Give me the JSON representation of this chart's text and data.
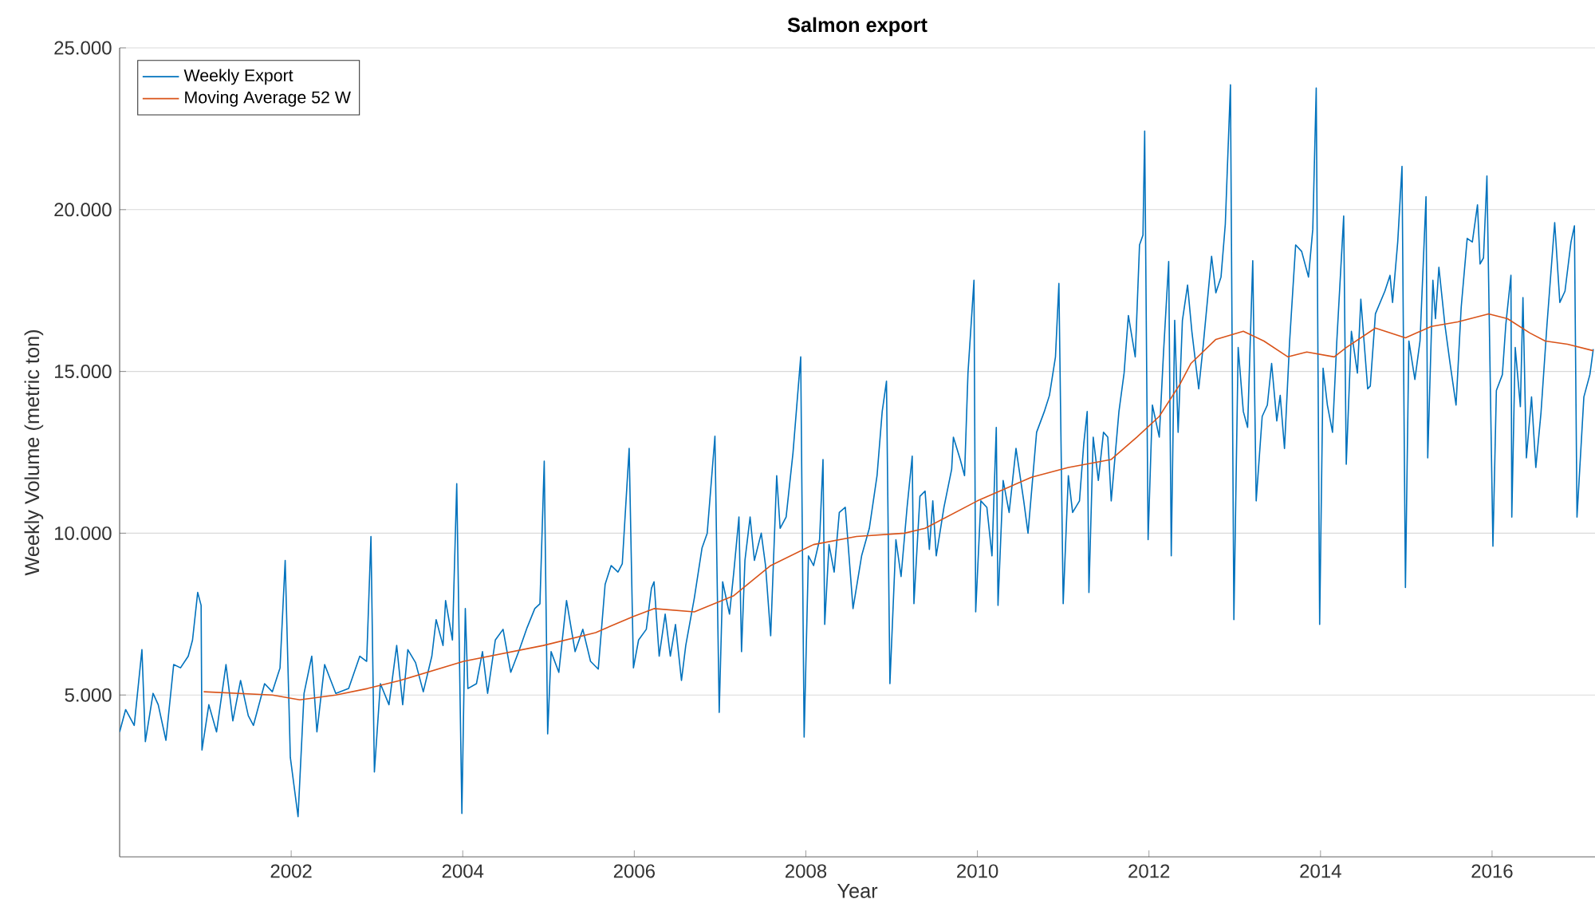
{
  "chart_data": {
    "type": "line",
    "title": "Salmon export",
    "xlabel": "Year",
    "ylabel": "Weekly Volume (metric ton)",
    "xlim": [
      2000,
      2017.2
    ],
    "ylim": [
      0,
      25000
    ],
    "xticks": [
      2002,
      2004,
      2006,
      2008,
      2010,
      2012,
      2014,
      2016
    ],
    "yticks": [
      {
        "value": 5000,
        "label": "5.000"
      },
      {
        "value": 10000,
        "label": "10.000"
      },
      {
        "value": 15000,
        "label": "15.000"
      },
      {
        "value": 20000,
        "label": "20.000"
      },
      {
        "value": 25000,
        "label": "25.000"
      }
    ],
    "grid": "y",
    "legend": "top left",
    "series": [
      {
        "name": "Weekly Export",
        "color": "#0072bd",
        "x": [
          2000.0,
          2000.07,
          2000.17,
          2000.26,
          2000.3,
          2000.39,
          2000.45,
          2000.54,
          2000.63,
          2000.71,
          2000.8,
          2000.85,
          2000.91,
          2000.95,
          2000.96,
          2001.04,
          2001.13,
          2001.24,
          2001.32,
          2001.41,
          2001.5,
          2001.56,
          2001.69,
          2001.78,
          2001.87,
          2001.93,
          2001.99,
          2002.08,
          2002.15,
          2002.24,
          2002.3,
          2002.39,
          2002.52,
          2002.67,
          2002.8,
          2002.88,
          2002.93,
          2002.97,
          2003.04,
          2003.14,
          2003.23,
          2003.3,
          2003.36,
          2003.45,
          2003.54,
          2003.64,
          2003.69,
          2003.77,
          2003.8,
          2003.88,
          2003.93,
          2003.99,
          2004.03,
          2004.06,
          2004.16,
          2004.23,
          2004.29,
          2004.38,
          2004.47,
          2004.56,
          2004.66,
          2004.75,
          2004.84,
          2004.9,
          2004.95,
          2004.99,
          2005.03,
          2005.12,
          2005.21,
          2005.31,
          2005.4,
          2005.49,
          2005.58,
          2005.66,
          2005.73,
          2005.81,
          2005.86,
          2005.94,
          2005.99,
          2006.05,
          2006.14,
          2006.2,
          2006.23,
          2006.29,
          2006.36,
          2006.42,
          2006.48,
          2006.55,
          2006.6,
          2006.7,
          2006.79,
          2006.85,
          2006.94,
          2006.99,
          2007.03,
          2007.11,
          2007.16,
          2007.22,
          2007.25,
          2007.29,
          2007.35,
          2007.4,
          2007.48,
          2007.53,
          2007.59,
          2007.66,
          2007.7,
          2007.77,
          2007.85,
          2007.94,
          2007.98,
          2008.03,
          2008.09,
          2008.16,
          2008.2,
          2008.22,
          2008.27,
          2008.33,
          2008.39,
          2008.46,
          2008.55,
          2008.65,
          2008.74,
          2008.83,
          2008.89,
          2008.94,
          2008.98,
          2009.05,
          2009.11,
          2009.18,
          2009.24,
          2009.26,
          2009.33,
          2009.39,
          2009.44,
          2009.48,
          2009.52,
          2009.61,
          2009.7,
          2009.72,
          2009.8,
          2009.85,
          2009.89,
          2009.96,
          2009.98,
          2010.04,
          2010.11,
          2010.17,
          2010.22,
          2010.24,
          2010.3,
          2010.37,
          2010.45,
          2010.54,
          2010.59,
          2010.69,
          2010.78,
          2010.84,
          2010.91,
          2010.95,
          2011.0,
          2011.06,
          2011.11,
          2011.19,
          2011.24,
          2011.28,
          2011.3,
          2011.35,
          2011.41,
          2011.47,
          2011.52,
          2011.56,
          2011.65,
          2011.71,
          2011.76,
          2011.84,
          2011.89,
          2011.93,
          2011.95,
          2011.99,
          2012.04,
          2012.12,
          2012.17,
          2012.23,
          2012.26,
          2012.3,
          2012.34,
          2012.39,
          2012.45,
          2012.5,
          2012.58,
          2012.63,
          2012.73,
          2012.78,
          2012.84,
          2012.89,
          2012.95,
          2012.99,
          2013.04,
          2013.1,
          2013.15,
          2013.21,
          2013.25,
          2013.32,
          2013.38,
          2013.43,
          2013.49,
          2013.53,
          2013.58,
          2013.64,
          2013.71,
          2013.78,
          2013.86,
          2013.91,
          2013.95,
          2013.99,
          2014.03,
          2014.08,
          2014.14,
          2014.19,
          2014.27,
          2014.3,
          2014.36,
          2014.43,
          2014.47,
          2014.55,
          2014.58,
          2014.64,
          2014.75,
          2014.81,
          2014.84,
          2014.9,
          2014.95,
          2014.99,
          2015.03,
          2015.1,
          2015.16,
          2015.23,
          2015.25,
          2015.31,
          2015.34,
          2015.38,
          2015.45,
          2015.51,
          2015.58,
          2015.64,
          2015.71,
          2015.77,
          2015.83,
          2015.86,
          2015.9,
          2015.94,
          2016.01,
          2016.05,
          2016.12,
          2016.16,
          2016.22,
          2016.23,
          2016.27,
          2016.33,
          2016.36,
          2016.4,
          2016.46,
          2016.51,
          2016.57,
          2016.64,
          2016.73,
          2016.79,
          2016.85,
          2016.92,
          2016.96,
          2016.99,
          2017.07,
          2017.14,
          2017.18
        ],
        "values": [
          3860,
          4550,
          4060,
          6400,
          3560,
          5050,
          4700,
          3600,
          5940,
          5840,
          6200,
          6700,
          8170,
          7770,
          3300,
          4700,
          3860,
          5940,
          4200,
          5450,
          4360,
          4060,
          5350,
          5100,
          5840,
          9160,
          3070,
          1240,
          5050,
          6200,
          3860,
          5940,
          5050,
          5200,
          6200,
          6040,
          9900,
          2620,
          5350,
          4700,
          6530,
          4700,
          6400,
          6000,
          5100,
          6200,
          7330,
          6530,
          7920,
          6700,
          11530,
          1340,
          7670,
          5200,
          5350,
          6340,
          5050,
          6700,
          7030,
          5700,
          6400,
          7080,
          7670,
          7820,
          12230,
          3800,
          6340,
          5700,
          7920,
          6340,
          7030,
          6040,
          5800,
          8420,
          9000,
          8800,
          9060,
          12620,
          5840,
          6700,
          7030,
          8300,
          8500,
          6200,
          7500,
          6200,
          7180,
          5450,
          6530,
          8000,
          9550,
          10000,
          13000,
          4460,
          8500,
          7500,
          8800,
          10500,
          6340,
          9160,
          10500,
          9160,
          10000,
          9000,
          6830,
          11780,
          10150,
          10500,
          12480,
          15450,
          3700,
          9300,
          9000,
          9800,
          12280,
          7180,
          9650,
          8800,
          10640,
          10800,
          7670,
          9300,
          10150,
          11780,
          13760,
          14700,
          5350,
          9800,
          8660,
          10800,
          12380,
          7820,
          11140,
          11300,
          9500,
          11000,
          9300,
          10800,
          11980,
          12970,
          12280,
          11780,
          14950,
          17820,
          7570,
          11000,
          10800,
          9300,
          13270,
          7770,
          11630,
          10640,
          12620,
          11000,
          10000,
          13120,
          13760,
          14260,
          15450,
          17720,
          7820,
          11780,
          10640,
          11000,
          12770,
          13760,
          8170,
          12970,
          11630,
          13120,
          12970,
          11000,
          13760,
          14950,
          16730,
          15450,
          18910,
          19210,
          22430,
          9800,
          13960,
          12970,
          15600,
          18400,
          9300,
          16580,
          13120,
          16580,
          17670,
          16240,
          14460,
          15740,
          18560,
          17430,
          17920,
          19550,
          23860,
          7330,
          15740,
          13760,
          13270,
          18420,
          11000,
          13610,
          13960,
          15250,
          13470,
          14260,
          12620,
          15940,
          18910,
          18710,
          17920,
          19400,
          23760,
          7180,
          15100,
          13960,
          13120,
          15940,
          19800,
          12130,
          16240,
          14950,
          17230,
          14460,
          14550,
          16780,
          17480,
          17970,
          17130,
          19000,
          21340,
          8320,
          15940,
          14750,
          15940,
          20400,
          12330,
          17820,
          16630,
          18220,
          16440,
          15250,
          13960,
          16980,
          19110,
          19000,
          20150,
          18320,
          18510,
          21040,
          9600,
          14410,
          14900,
          16440,
          17970,
          10500,
          15740,
          13910,
          17280,
          12330,
          14210,
          12030,
          13710,
          16440,
          19600,
          17130,
          17480,
          19000,
          19500,
          10500,
          14210,
          14900,
          15690
        ]
      },
      {
        "name": "Moving Average 52 W",
        "color": "#d95319",
        "x": [
          2000.98,
          2001.78,
          2002.1,
          2002.52,
          2002.89,
          2003.27,
          2004.01,
          2004.94,
          2005.55,
          2005.99,
          2006.23,
          2006.7,
          2007.16,
          2007.59,
          2008.09,
          2008.59,
          2009.15,
          2009.39,
          2010.0,
          2010.63,
          2011.06,
          2011.56,
          2011.86,
          2012.12,
          2012.36,
          2012.49,
          2012.78,
          2013.1,
          2013.34,
          2013.62,
          2013.84,
          2014.16,
          2014.3,
          2014.64,
          2014.99,
          2015.29,
          2015.6,
          2015.96,
          2016.18,
          2016.44,
          2016.62,
          2016.88,
          2017.18
        ],
        "values": [
          5100,
          5000,
          4850,
          5000,
          5200,
          5450,
          6040,
          6530,
          6930,
          7430,
          7670,
          7570,
          8070,
          9000,
          9650,
          9900,
          10000,
          10150,
          11000,
          11730,
          12030,
          12280,
          12970,
          13610,
          14600,
          15250,
          15990,
          16240,
          15940,
          15450,
          15600,
          15450,
          15740,
          16340,
          16040,
          16390,
          16530,
          16780,
          16630,
          16190,
          15940,
          15840,
          15640
        ]
      }
    ]
  }
}
